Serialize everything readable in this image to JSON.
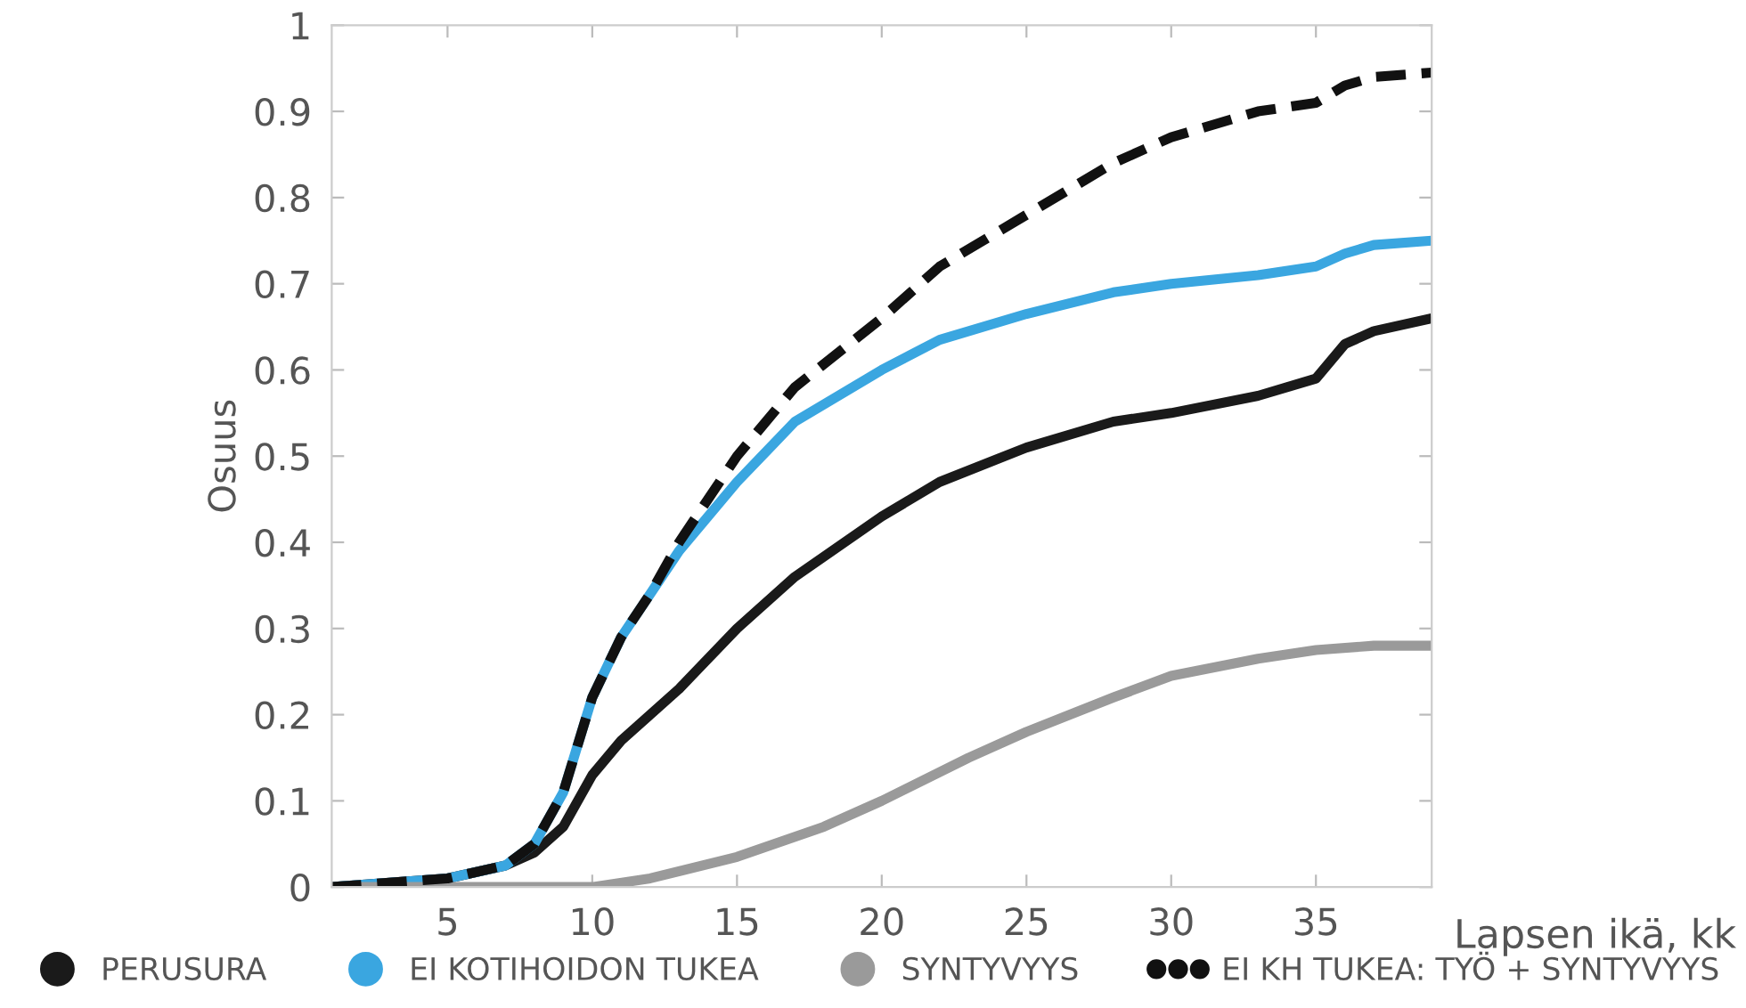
{
  "chart_data": {
    "type": "line",
    "xlabel": "Lapsen ikä, kk",
    "ylabel": "Osuus",
    "xlim": [
      1,
      39
    ],
    "xticks": [
      5,
      10,
      15,
      20,
      25,
      30,
      35
    ],
    "ylim": [
      0,
      1
    ],
    "yticks": [
      0,
      0.1,
      0.2,
      0.3,
      0.4,
      0.5,
      0.6,
      0.7,
      0.8,
      0.9,
      1
    ],
    "grid": false,
    "legend": "bottom",
    "series": [
      {
        "name": "PERUSURA",
        "color": "#1a1a1a",
        "line_style": "solid",
        "x": [
          1,
          5,
          7,
          8,
          9,
          10,
          11,
          12,
          13,
          15,
          17,
          20,
          22,
          25,
          28,
          30,
          33,
          35,
          36,
          37,
          39
        ],
        "values": [
          0,
          0.01,
          0.025,
          0.04,
          0.07,
          0.13,
          0.17,
          0.2,
          0.23,
          0.3,
          0.36,
          0.43,
          0.47,
          0.51,
          0.54,
          0.55,
          0.57,
          0.59,
          0.63,
          0.645,
          0.66
        ]
      },
      {
        "name": "EI KOTIHOIDON TUKEA",
        "color": "#3aa6e0",
        "line_style": "solid",
        "x": [
          1,
          5,
          7,
          8,
          9,
          10,
          11,
          12,
          13,
          15,
          17,
          20,
          22,
          25,
          28,
          30,
          33,
          35,
          36,
          37,
          39
        ],
        "values": [
          0,
          0.01,
          0.025,
          0.05,
          0.11,
          0.22,
          0.29,
          0.34,
          0.39,
          0.47,
          0.54,
          0.6,
          0.635,
          0.665,
          0.69,
          0.7,
          0.71,
          0.72,
          0.735,
          0.745,
          0.75
        ]
      },
      {
        "name": "SYNTYVYYS",
        "color": "#9a9a9a",
        "line_style": "solid",
        "x": [
          1,
          10,
          12,
          15,
          18,
          20,
          23,
          25,
          28,
          30,
          33,
          35,
          37,
          39
        ],
        "values": [
          0,
          0,
          0.01,
          0.035,
          0.07,
          0.1,
          0.15,
          0.18,
          0.22,
          0.245,
          0.265,
          0.275,
          0.28,
          0.28
        ]
      },
      {
        "name": "EI KH TUKEA: TYÖ + SYNTYVYYS",
        "color": "#111111",
        "line_style": "dashed",
        "x": [
          1,
          5,
          7,
          8,
          9,
          10,
          11,
          12,
          13,
          15,
          17,
          20,
          22,
          25,
          28,
          30,
          33,
          35,
          36,
          37,
          39
        ],
        "values": [
          0,
          0.01,
          0.025,
          0.05,
          0.11,
          0.22,
          0.29,
          0.34,
          0.4,
          0.5,
          0.58,
          0.66,
          0.72,
          0.78,
          0.84,
          0.87,
          0.9,
          0.91,
          0.93,
          0.94,
          0.945
        ]
      }
    ]
  }
}
